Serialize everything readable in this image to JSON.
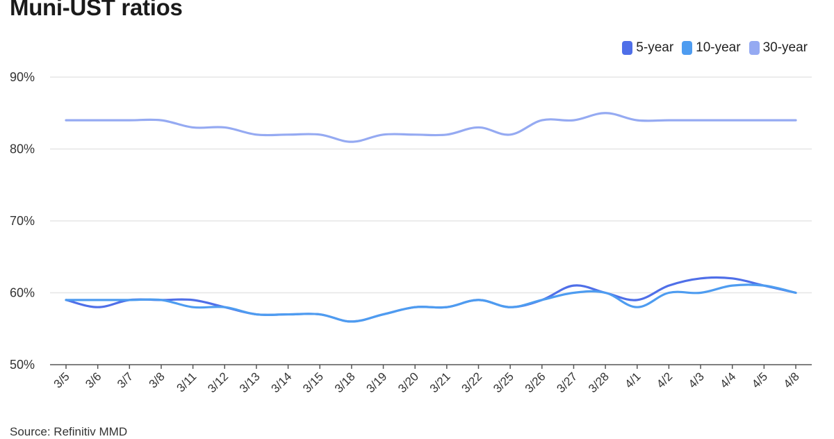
{
  "title": "Muni-UST ratios",
  "source": "Source: Refinitiv MMD",
  "legend": [
    {
      "label": "5-year",
      "color": "#4f6fe8"
    },
    {
      "label": "10-year",
      "color": "#4e9cf0"
    },
    {
      "label": "30-year",
      "color": "#95aaf2"
    }
  ],
  "chart_data": {
    "type": "line",
    "title": "Muni-UST ratios",
    "xlabel": "",
    "ylabel": "",
    "ylim": [
      50,
      90
    ],
    "yticks": [
      "50%",
      "60%",
      "70%",
      "80%",
      "90%"
    ],
    "ytick_values": [
      50,
      60,
      70,
      80,
      90
    ],
    "categories": [
      "3/5",
      "3/6",
      "3/7",
      "3/8",
      "3/11",
      "3/12",
      "3/13",
      "3/14",
      "3/15",
      "3/18",
      "3/19",
      "3/20",
      "3/21",
      "3/22",
      "3/25",
      "3/26",
      "3/27",
      "3/28",
      "4/1",
      "4/2",
      "4/3",
      "4/4",
      "4/5",
      "4/8"
    ],
    "grid": true,
    "legend_position": "top-right",
    "series": [
      {
        "name": "5-year",
        "color": "#4f6fe8",
        "values": [
          59,
          58,
          59,
          59,
          59,
          58,
          57,
          57,
          57,
          56,
          57,
          58,
          58,
          59,
          58,
          59,
          61,
          60,
          59,
          61,
          62,
          62,
          61,
          60
        ]
      },
      {
        "name": "10-year",
        "color": "#4e9cf0",
        "values": [
          59,
          59,
          59,
          59,
          58,
          58,
          57,
          57,
          57,
          56,
          57,
          58,
          58,
          59,
          58,
          59,
          60,
          60,
          58,
          60,
          60,
          61,
          61,
          60
        ]
      },
      {
        "name": "30-year",
        "color": "#95aaf2",
        "values": [
          84,
          84,
          84,
          84,
          83,
          83,
          82,
          82,
          82,
          81,
          82,
          82,
          82,
          83,
          82,
          84,
          84,
          85,
          84,
          84,
          84,
          84,
          84,
          84
        ]
      }
    ]
  }
}
